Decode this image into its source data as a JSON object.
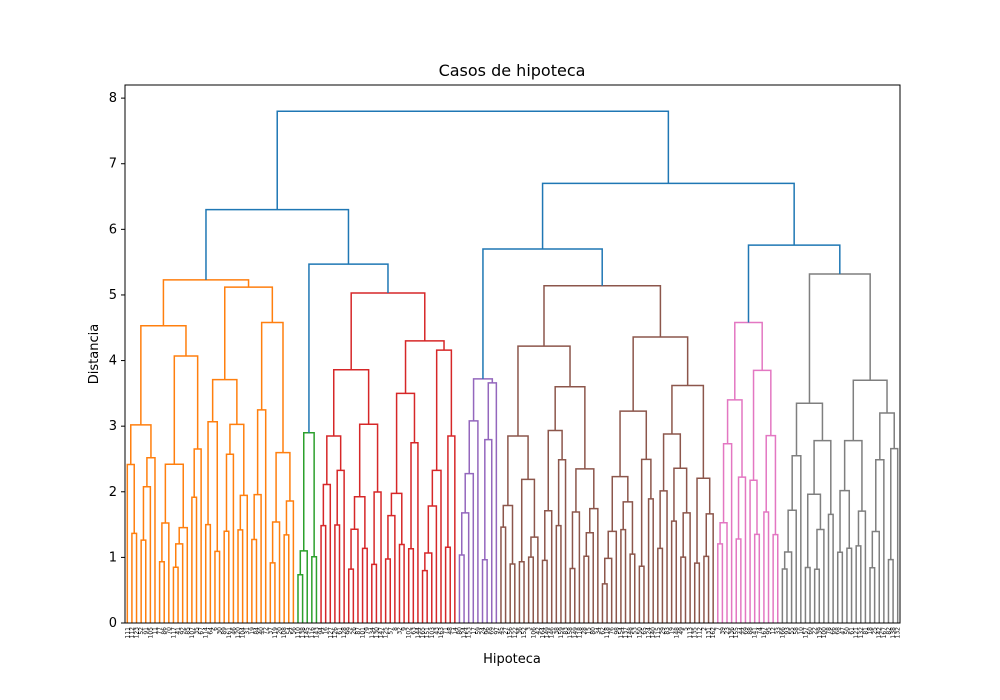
{
  "chart_data": {
    "type": "dendrogram",
    "title": "Casos de hipoteca",
    "xlabel": "Hipoteca",
    "ylabel": "Distancia",
    "ylim": [
      0,
      8.2
    ],
    "yticks": [
      "0",
      "1",
      "2",
      "3",
      "4",
      "5",
      "6",
      "7",
      "8"
    ],
    "leaf_count": 168,
    "grid": false,
    "root": {
      "height": 7.8,
      "left": "cluster_L",
      "right": "cluster_R",
      "color": "#1f77b4"
    },
    "clusters": [
      {
        "name": "orange",
        "color": "#ff7f0e",
        "leaf_range": [
          0,
          36
        ],
        "top_height": 5.23,
        "subclusters": [
          {
            "height": 4.53,
            "sub": [
              3.02,
              4.07
            ]
          },
          {
            "height": 5.12,
            "sub": [
              3.71,
              4.58
            ]
          }
        ]
      },
      {
        "name": "green",
        "color": "#2ca02c",
        "leaf_range": [
          37,
          41
        ],
        "top_height": 2.9,
        "subclusters": [
          {
            "height": 2.02,
            "sub": [
              1.1,
              1.38
            ]
          }
        ]
      },
      {
        "name": "red",
        "color": "#d62728",
        "leaf_range": [
          42,
          71
        ],
        "top_height": 5.03,
        "subclusters": [
          {
            "height": 3.86,
            "sub": [
              2.85,
              3.03
            ]
          },
          {
            "height": 4.3,
            "sub": [
              3.5,
              4.16
            ]
          }
        ]
      },
      {
        "name": "purple",
        "color": "#9467bd",
        "leaf_range": [
          72,
          80
        ],
        "top_height": 3.72,
        "subclusters": [
          {
            "height": 3.72,
            "sub": [
              3.08,
              3.66
            ]
          }
        ]
      },
      {
        "name": "brown",
        "color": "#8c564b",
        "leaf_range": [
          81,
          127
        ],
        "top_height": 5.14,
        "subclusters": [
          {
            "height": 4.22,
            "sub": [
              2.85,
              3.6
            ]
          },
          {
            "height": 4.36,
            "sub": [
              3.23,
              3.62
            ]
          }
        ]
      },
      {
        "name": "pink",
        "color": "#e377c2",
        "leaf_range": [
          128,
          141
        ],
        "top_height": 4.58,
        "subclusters": [
          {
            "height": 4.58,
            "sub": [
              3.4,
              3.85
            ]
          }
        ]
      },
      {
        "name": "gray",
        "color": "#7f7f7f",
        "leaf_range": [
          142,
          167
        ],
        "top_height": 5.32,
        "subclusters": [
          {
            "height": 3.35,
            "sub": [
              2.55,
              2.78
            ]
          },
          {
            "height": 3.7,
            "sub": [
              2.78,
              3.2
            ]
          }
        ]
      }
    ],
    "links": [
      {
        "between": [
          "orange",
          "green+red"
        ],
        "height": 6.3,
        "color": "#1f77b4"
      },
      {
        "between": [
          "green",
          "red"
        ],
        "height": 5.47,
        "color": "#1f77b4"
      },
      {
        "between": [
          "purple",
          "brown"
        ],
        "height": 5.7,
        "color": "#1f77b4"
      },
      {
        "between": [
          "pink",
          "gray"
        ],
        "height": 5.76,
        "color": "#1f77b4"
      },
      {
        "between": [
          "purple+brown",
          "pink+gray"
        ],
        "height": 6.7,
        "color": "#1f77b4"
      }
    ],
    "leaf_labels": [
      "111",
      "112",
      "123",
      "52",
      "91",
      "105",
      "11",
      "77",
      "86",
      "70",
      "117",
      "41",
      "92",
      "85",
      "107",
      "35",
      "67",
      "114",
      "64",
      "6",
      "30",
      "89",
      "161",
      "46",
      "120",
      "104",
      "31",
      "19",
      "84",
      "40",
      "72",
      "37",
      "119",
      "20",
      "108",
      "54",
      "56",
      "110",
      "138",
      "145",
      "116",
      "143",
      "94",
      "16",
      "127",
      "126",
      "61",
      "128",
      "99",
      "26",
      "87",
      "101",
      "79",
      "134",
      "130",
      "147",
      "125",
      "57",
      "8",
      "32",
      "9",
      "102",
      "63",
      "144",
      "165",
      "151",
      "103",
      "43",
      "163",
      "71",
      "48",
      "14",
      "80",
      "124",
      "153",
      "17",
      "59",
      "24",
      "96",
      "69",
      "97",
      "45",
      "27",
      "156",
      "122",
      "36",
      "152",
      "3",
      "106",
      "42",
      "164",
      "149",
      "146",
      "38",
      "159",
      "83",
      "158",
      "149",
      "118",
      "28",
      "15",
      "80",
      "34",
      "62",
      "118",
      "76",
      "98",
      "154",
      "137",
      "148",
      "53",
      "150",
      "65",
      "124",
      "140",
      "115",
      "29",
      "83",
      "19",
      "148",
      "49",
      "5",
      "113",
      "135",
      "112",
      "2",
      "131",
      "162",
      "7",
      "39",
      "23",
      "136",
      "155",
      "44",
      "69",
      "88",
      "141",
      "74",
      "167",
      "95",
      "12",
      "33",
      "166",
      "93",
      "55",
      "58",
      "10",
      "157",
      "60",
      "22",
      "139",
      "100",
      "78",
      "66",
      "68",
      "47",
      "50",
      "61",
      "121",
      "132",
      "81",
      "18",
      "25",
      "142",
      "167",
      "82",
      "138",
      "132"
    ]
  }
}
